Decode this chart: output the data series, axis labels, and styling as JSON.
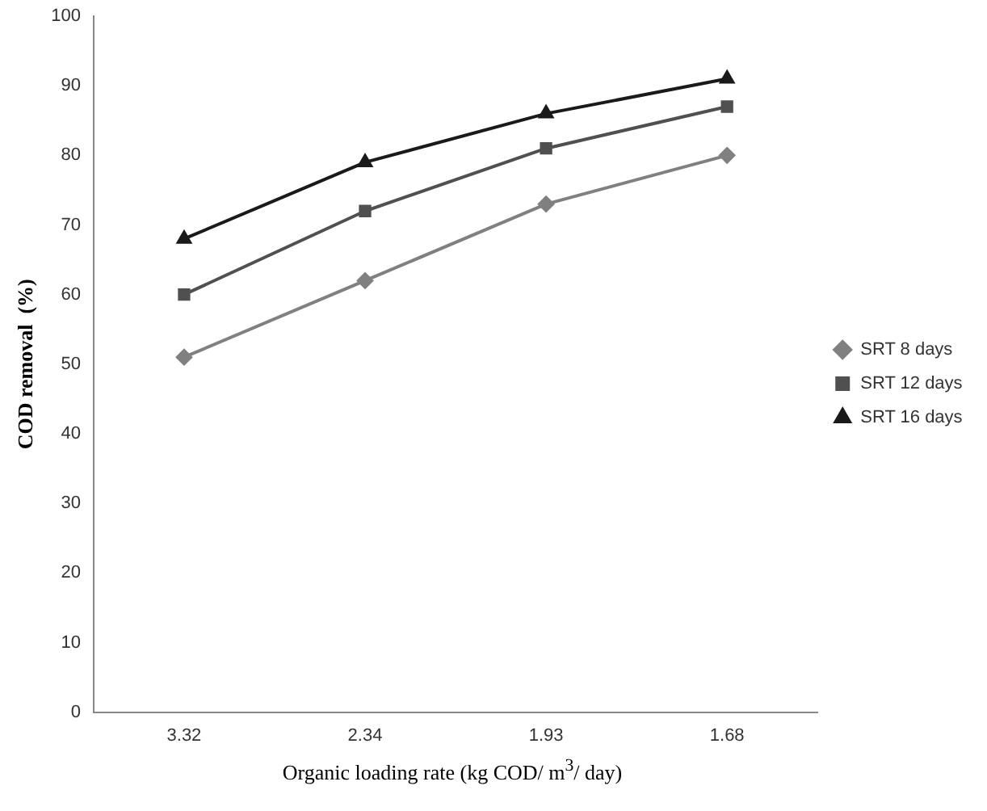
{
  "chart_data": {
    "type": "line",
    "xlabel": "Organic loading rate (kg COD/ m$^{3}$/ day)",
    "ylabel": "COD removal  (%)",
    "categories": [
      "3.32",
      "2.34",
      "1.93",
      "1.68"
    ],
    "series": [
      {
        "name": "SRT 8 days",
        "color": "#808080",
        "marker": "diamond",
        "values": [
          51,
          62,
          73,
          80
        ]
      },
      {
        "name": "SRT 12 days",
        "color": "#505050",
        "marker": "square",
        "values": [
          60,
          72,
          81,
          87
        ]
      },
      {
        "name": "SRT 16 days",
        "color": "#1a1a1a",
        "marker": "triangle",
        "values": [
          68,
          79,
          86,
          91
        ]
      }
    ],
    "ylim": [
      0,
      100
    ],
    "yticks": [
      0,
      10,
      20,
      30,
      40,
      50,
      60,
      70,
      80,
      90,
      100
    ],
    "grid": false,
    "legend": "right",
    "line_style": "solid"
  }
}
